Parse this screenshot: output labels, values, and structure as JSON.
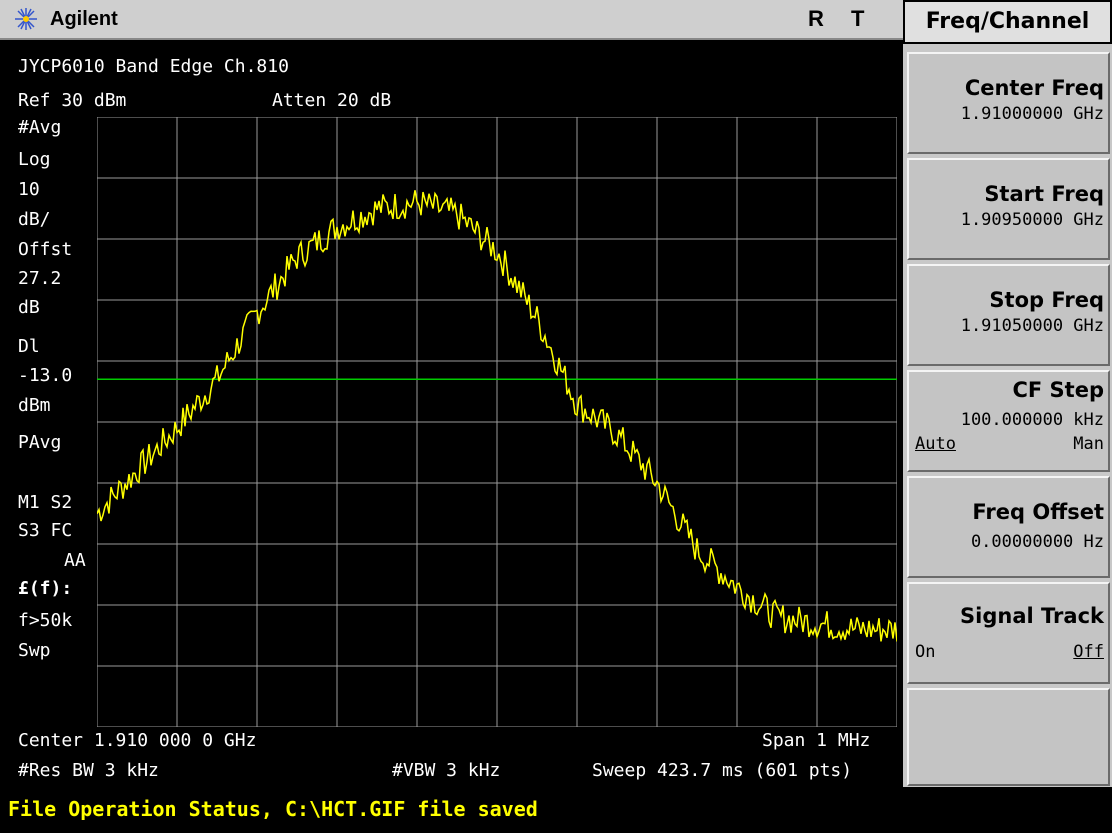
{
  "header": {
    "brand": "Agilent",
    "indicator_r": "R",
    "indicator_t": "T"
  },
  "menu": {
    "title": "Freq/Channel",
    "keys": [
      {
        "label": "Center Freq",
        "value": "1.91000000 GHz"
      },
      {
        "label": "Start Freq",
        "value": "1.90950000 GHz"
      },
      {
        "label": "Stop Freq",
        "value": "1.91050000 GHz"
      },
      {
        "label": "CF Step",
        "value": "100.000000 kHz",
        "opt_left": "Auto",
        "opt_right": "Man"
      },
      {
        "label": "Freq Offset",
        "value": "0.00000000  Hz"
      },
      {
        "label": "Signal Track",
        "opt_left": "On",
        "opt_right": "Off"
      }
    ]
  },
  "screen": {
    "title": "JYCP6010 Band Edge Ch.810",
    "ref": "Ref 30 dBm",
    "atten": "Atten 20 dB",
    "left_annotations": [
      "#Avg",
      "Log",
      "10",
      "dB/",
      "Offst",
      "27.2",
      "dB",
      "Dl",
      "-13.0",
      "dBm",
      "PAvg",
      "M1  S2",
      "S3  FC",
      "AA",
      "£(f):",
      "f>50k",
      "Swp"
    ],
    "center": "Center 1.910 000 0 GHz",
    "span": "Span 1 MHz",
    "res_bw": "#Res BW 3 kHz",
    "vbw": "#VBW 3 kHz",
    "sweep": "Sweep 423.7 ms (601 pts)"
  },
  "status": {
    "text": "File Operation Status, C:\\HCT.GIF file saved"
  },
  "colors": {
    "trace": "#ffff00",
    "display_line": "#00cc00",
    "grid": "#9a9a9a"
  },
  "chart_data": {
    "type": "line",
    "x_unit": "GHz",
    "x_range": [
      1.9095,
      1.9105
    ],
    "y_unit": "dBm",
    "y_range": [
      -70,
      30
    ],
    "display_line": -13.0,
    "series": [
      {
        "x": [
          1.9095,
          1.90955,
          1.9096,
          1.90965,
          1.9097,
          1.90975,
          1.9098,
          1.90985,
          1.9099,
          1.90995,
          1.91,
          1.91005,
          1.9101,
          1.91015,
          1.9102,
          1.91025,
          1.9103,
          1.91035,
          1.9104,
          1.91045,
          1.9105
        ],
        "values": [
          -35,
          -28,
          -21,
          -13,
          -2,
          7,
          12,
          15,
          16,
          14,
          8,
          -3,
          -17,
          -22,
          -30,
          -41,
          -47,
          -52,
          -53,
          -54,
          -54
        ]
      }
    ]
  }
}
